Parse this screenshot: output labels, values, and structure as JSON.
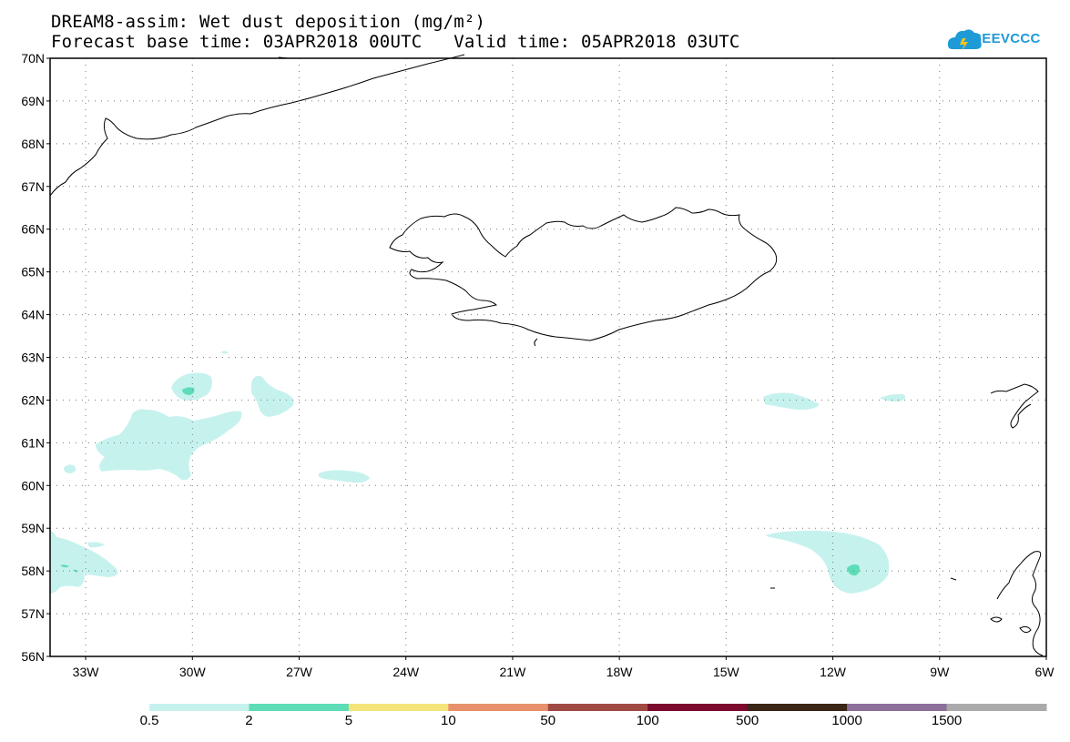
{
  "title": {
    "line1": "DREAM8-assim: Wet dust deposition (mg/m²)",
    "line2": "Forecast base time: 03APR2018 00UTC   Valid time: 05APR2018 03UTC"
  },
  "logo": {
    "text": "SEEVCCC",
    "icon": "cloud-icon",
    "color": "#1e9ad6"
  },
  "map": {
    "region": "North Atlantic / Iceland",
    "lon_range": [
      -34,
      -6
    ],
    "lat_range": [
      56,
      70
    ],
    "grid": true,
    "lat_labels": [
      "56N",
      "57N",
      "58N",
      "59N",
      "60N",
      "61N",
      "62N",
      "63N",
      "64N",
      "65N",
      "66N",
      "67N",
      "68N",
      "69N",
      "70N"
    ],
    "lon_labels": [
      "33W",
      "30W",
      "27W",
      "24W",
      "21W",
      "18W",
      "15W",
      "12W",
      "9W",
      "6W"
    ]
  },
  "colorbar": {
    "colors": [
      "#c6f2ee",
      "#5ddcb7",
      "#f5e47a",
      "#e8906b",
      "#a14a43",
      "#7c0a2e",
      "#3b2617",
      "#8d6f9a",
      "#aaaaaa"
    ],
    "labels": [
      "0.5",
      "2",
      "5",
      "10",
      "50",
      "100",
      "500",
      "1000",
      "1500"
    ]
  },
  "colors": {
    "land_outline": "#000000",
    "deposition_light": "#c6f2ee",
    "deposition_medium": "#5ddcb7"
  }
}
